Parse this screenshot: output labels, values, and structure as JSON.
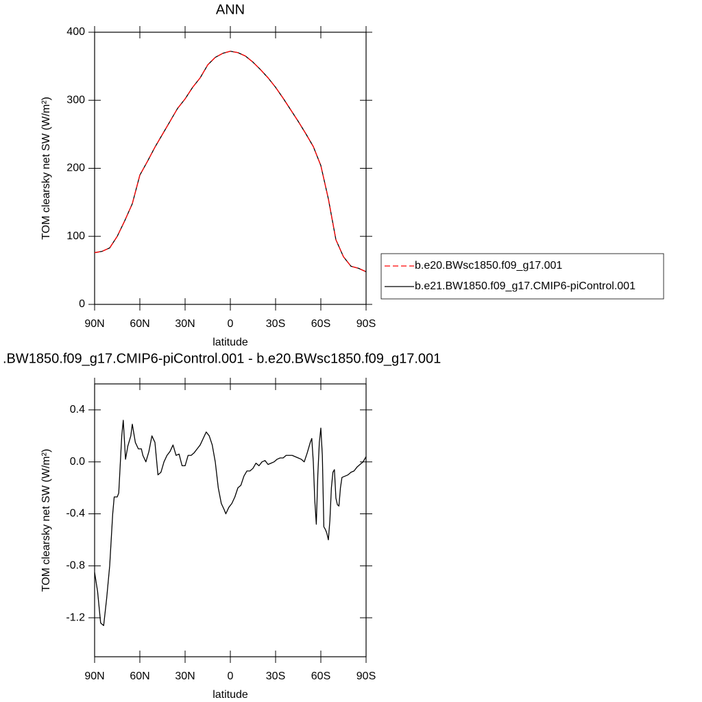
{
  "chart_data": [
    {
      "type": "line",
      "title": "ANN",
      "xlabel": "latitude",
      "ylabel": "TOM clearsky net SW (W/m²)",
      "x": [
        90,
        85,
        80,
        75,
        70,
        65,
        60,
        55,
        50,
        45,
        40,
        35,
        30,
        25,
        20,
        15,
        10,
        5,
        0,
        -5,
        -10,
        -15,
        -20,
        -25,
        -30,
        -35,
        -40,
        -45,
        -50,
        -55,
        -60,
        -65,
        -70,
        -75,
        -80,
        -85,
        -90
      ],
      "series": [
        {
          "name": "b.e20.BWsc1850.f09_g17.001",
          "color": "#ff0000",
          "dashed": true,
          "values": [
            76,
            78,
            83,
            100,
            123,
            148,
            190,
            210,
            231,
            250,
            269,
            288,
            302,
            319,
            333,
            352,
            363,
            369,
            372,
            370,
            365,
            356,
            345,
            333,
            319,
            303,
            286,
            269,
            251,
            232,
            204,
            155,
            95,
            70,
            56,
            53,
            48
          ]
        },
        {
          "name": "b.e21.BW1850.f09_g17.CMIP6-piControl.001",
          "color": "#000000",
          "dashed": false,
          "values": [
            76,
            78,
            83,
            100,
            123,
            148,
            190,
            210,
            231,
            250,
            269,
            288,
            302,
            319,
            333,
            352,
            363,
            369,
            372,
            370,
            365,
            356,
            345,
            333,
            319,
            303,
            286,
            269,
            251,
            232,
            204,
            155,
            95,
            70,
            56,
            53,
            48
          ]
        }
      ],
      "xlim": [
        90,
        -90
      ],
      "xticks": [
        {
          "value": 90,
          "label": "90N"
        },
        {
          "value": 60,
          "label": "60N"
        },
        {
          "value": 30,
          "label": "30N"
        },
        0,
        {
          "value": -30,
          "label": "30S"
        },
        {
          "value": -60,
          "label": "60S"
        },
        {
          "value": -90,
          "label": "90S"
        }
      ],
      "ylim": [
        0,
        400
      ],
      "yticks": [
        0,
        100,
        200,
        300,
        400
      ],
      "legend": "right"
    },
    {
      "type": "line",
      "title": ".BW1850.f09_g17.CMIP6-piControl.001 - b.e20.BWsc1850.f09_g17.001",
      "xlabel": "latitude",
      "ylabel": "TOM clearsky net SW (W/m²)",
      "x": [
        90,
        88,
        86,
        84,
        82,
        80,
        78,
        77,
        75,
        74,
        72,
        71,
        69.5,
        68,
        66,
        65,
        63,
        61,
        59,
        58,
        56,
        54,
        52,
        50,
        48,
        46,
        44,
        42,
        40,
        38,
        36,
        34,
        32,
        30,
        28,
        26,
        24,
        22,
        20,
        18,
        16,
        14,
        12,
        10,
        8,
        6,
        4,
        3,
        1,
        -1,
        -3,
        -5,
        -7,
        -9,
        -11,
        -13,
        -15,
        -17,
        -19,
        -21,
        -23,
        -25,
        -27,
        -29,
        -31,
        -33,
        -35,
        -37,
        -39,
        -41,
        -43,
        -45,
        -47,
        -49,
        -51,
        -53,
        -54,
        -55,
        -56,
        -57,
        -58,
        -59,
        -60,
        -61,
        -62,
        -63,
        -64,
        -65,
        -66,
        -67,
        -68,
        -69,
        -70,
        -71,
        -72,
        -73,
        -74,
        -76,
        -78,
        -80,
        -82,
        -84,
        -86,
        -88,
        -90
      ],
      "series": [
        {
          "color": "#000000",
          "dashed": false,
          "values": [
            -0.85,
            -1.0,
            -1.24,
            -1.26,
            -1.05,
            -0.8,
            -0.4,
            -0.27,
            -0.27,
            -0.24,
            0.2,
            0.32,
            0.02,
            0.12,
            0.2,
            0.29,
            0.15,
            0.1,
            0.1,
            0.05,
            0.0,
            0.08,
            0.2,
            0.15,
            -0.1,
            -0.08,
            0.0,
            0.05,
            0.08,
            0.13,
            0.05,
            0.06,
            -0.03,
            -0.03,
            0.05,
            0.05,
            0.07,
            0.1,
            0.13,
            0.18,
            0.23,
            0.2,
            0.13,
            0.0,
            -0.2,
            -0.32,
            -0.37,
            -0.4,
            -0.35,
            -0.32,
            -0.27,
            -0.2,
            -0.18,
            -0.11,
            -0.07,
            -0.07,
            -0.05,
            -0.01,
            -0.03,
            0.0,
            0.01,
            -0.02,
            -0.01,
            0.0,
            0.02,
            0.03,
            0.03,
            0.05,
            0.05,
            0.05,
            0.04,
            0.03,
            0.02,
            0.0,
            0.07,
            0.15,
            0.18,
            0.0,
            -0.3,
            -0.48,
            -0.1,
            0.15,
            0.26,
            0.05,
            -0.5,
            -0.52,
            -0.55,
            -0.6,
            -0.45,
            -0.2,
            -0.08,
            -0.06,
            -0.28,
            -0.33,
            -0.34,
            -0.2,
            -0.12,
            -0.11,
            -0.1,
            -0.08,
            -0.07,
            -0.04,
            -0.02,
            0.0,
            0.04
          ]
        }
      ],
      "xlim": [
        90,
        -90
      ],
      "xticks": [
        {
          "value": 90,
          "label": "90N"
        },
        {
          "value": 60,
          "label": "60N"
        },
        {
          "value": 30,
          "label": "30N"
        },
        0,
        {
          "value": -30,
          "label": "30S"
        },
        {
          "value": -60,
          "label": "60S"
        },
        {
          "value": -90,
          "label": "90S"
        }
      ],
      "ylim": [
        -1.5,
        0.6
      ],
      "yticks": [
        0.4,
        {
          "value": 0,
          "label": "0.0"
        },
        -0.4,
        -0.8,
        -1.2
      ]
    }
  ]
}
